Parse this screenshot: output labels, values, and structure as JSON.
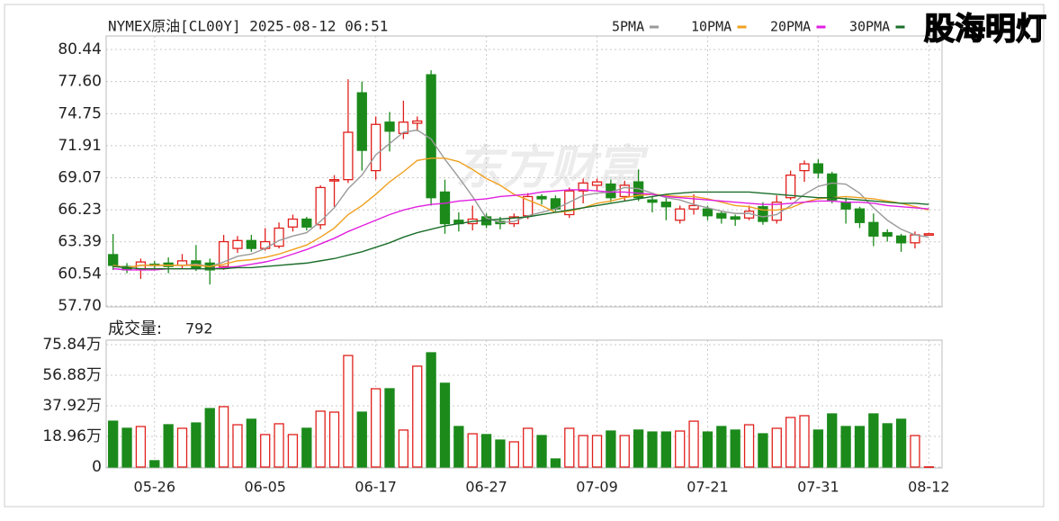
{
  "chart_data": [
    {
      "type": "candlestick",
      "title": "NYMEX原油[CL00Y] 2025-08-12 06:51",
      "categories": [
        null,
        null,
        null,
        "05-26",
        null,
        null,
        null,
        null,
        null,
        null,
        null,
        "06-05",
        null,
        null,
        null,
        null,
        null,
        null,
        null,
        "06-17",
        null,
        null,
        null,
        null,
        null,
        null,
        null,
        "06-27",
        null,
        null,
        null,
        null,
        null,
        null,
        null,
        "07-09",
        null,
        null,
        null,
        null,
        null,
        null,
        null,
        "07-21",
        null,
        null,
        null,
        null,
        null,
        null,
        null,
        "07-31",
        null,
        null,
        null,
        null,
        null,
        null,
        null,
        "08-12"
      ],
      "open": [
        62.25,
        61.2,
        60.9,
        61.4,
        61.5,
        61.3,
        61.7,
        61.5,
        61.2,
        62.8,
        63.5,
        62.8,
        63.0,
        64.7,
        65.4,
        64.9,
        68.8,
        68.9,
        76.6,
        69.7,
        74.0,
        73.0,
        73.9,
        78.2,
        67.8,
        65.3,
        65.0,
        65.6,
        65.2,
        65.0,
        65.7,
        67.4,
        67.2,
        65.8,
        67.9,
        68.4,
        68.5,
        67.4,
        68.7,
        67.1,
        66.9,
        65.3,
        66.3,
        66.3,
        65.9,
        65.6,
        65.5,
        66.5,
        65.3,
        67.3,
        69.7,
        70.3,
        69.4,
        66.9,
        66.3,
        65.1,
        64.2,
        63.9,
        63.3,
        64.05
      ],
      "high": [
        64.08,
        61.5,
        61.9,
        61.7,
        62.0,
        62.3,
        63.1,
        61.9,
        64.0,
        63.9,
        64.0,
        64.6,
        65.1,
        65.8,
        65.6,
        68.4,
        69.3,
        77.8,
        77.6,
        74.5,
        74.9,
        75.9,
        74.5,
        78.6,
        68.9,
        66.0,
        66.6,
        65.9,
        65.6,
        65.9,
        67.7,
        67.6,
        67.5,
        68.2,
        69.0,
        69.0,
        68.9,
        68.8,
        69.8,
        67.4,
        67.3,
        66.6,
        67.6,
        66.6,
        66.1,
        65.8,
        66.6,
        66.9,
        67.5,
        69.7,
        70.6,
        70.7,
        69.6,
        67.3,
        66.5,
        65.9,
        64.5,
        64.1,
        64.3,
        64.2
      ],
      "low": [
        60.89,
        60.6,
        60.1,
        61.0,
        60.6,
        61.0,
        60.8,
        59.6,
        60.9,
        62.4,
        62.5,
        62.6,
        62.8,
        64.3,
        64.4,
        64.5,
        66.5,
        68.6,
        69.7,
        68.9,
        71.4,
        72.5,
        73.2,
        66.6,
        64.1,
        64.3,
        64.4,
        64.6,
        64.5,
        64.7,
        65.4,
        66.7,
        66.1,
        65.5,
        66.8,
        67.9,
        66.9,
        67.0,
        67.0,
        66.0,
        65.3,
        65.0,
        65.8,
        65.3,
        65.0,
        64.8,
        65.3,
        64.9,
        65.0,
        67.1,
        68.7,
        69.0,
        66.8,
        65.0,
        64.6,
        63.0,
        63.4,
        62.5,
        62.8,
        64.0
      ],
      "close": [
        61.3,
        60.9,
        61.6,
        61.3,
        61.2,
        61.7,
        61.0,
        60.9,
        63.4,
        63.5,
        62.8,
        63.4,
        64.6,
        65.4,
        64.7,
        68.2,
        68.9,
        73.1,
        71.5,
        73.8,
        73.2,
        74.0,
        74.1,
        67.3,
        65.0,
        65.0,
        65.4,
        64.9,
        65.0,
        65.6,
        67.4,
        67.2,
        66.3,
        67.9,
        68.6,
        68.7,
        67.3,
        68.4,
        67.3,
        66.9,
        66.5,
        66.3,
        66.6,
        65.7,
        65.5,
        65.4,
        66.1,
        65.2,
        66.9,
        69.3,
        70.3,
        69.5,
        67.1,
        66.3,
        65.1,
        63.9,
        63.9,
        63.3,
        64.0,
        64.1
      ],
      "up_color": "#e0201c",
      "down_color": "#1b8a1b",
      "series": [
        {
          "name": "5PMA",
          "color": "#9a9a9a",
          "values": [
            61.3,
            61.1,
            61.3,
            61.3,
            61.3,
            61.3,
            61.4,
            61.2,
            61.6,
            62.1,
            62.3,
            62.8,
            63.5,
            63.9,
            64.2,
            65.2,
            66.4,
            68.1,
            69.3,
            71.1,
            72.1,
            73.1,
            73.3,
            72.5,
            70.7,
            69.1,
            67.4,
            65.5,
            65.1,
            65.2,
            65.7,
            66.0,
            66.3,
            66.9,
            67.5,
            67.7,
            67.8,
            68.2,
            68.1,
            67.7,
            67.3,
            67.1,
            66.7,
            66.4,
            66.1,
            65.9,
            65.9,
            65.6,
            65.8,
            66.6,
            67.6,
            68.3,
            68.6,
            68.5,
            67.7,
            66.4,
            65.3,
            64.5,
            64.0,
            63.8
          ]
        },
        {
          "name": "10PMA",
          "color": "#f0a020",
          "values": [
            61.3,
            61.1,
            61.3,
            61.3,
            61.3,
            61.3,
            61.3,
            61.2,
            61.4,
            61.7,
            61.8,
            62.0,
            62.3,
            62.7,
            63.1,
            63.8,
            64.6,
            65.8,
            66.6,
            67.6,
            68.7,
            69.6,
            70.6,
            70.8,
            70.8,
            70.5,
            69.8,
            69.0,
            68.4,
            67.6,
            67.1,
            66.6,
            66.0,
            66.1,
            66.4,
            66.8,
            67.0,
            67.3,
            67.5,
            67.6,
            67.5,
            67.4,
            67.4,
            67.2,
            66.9,
            66.6,
            66.5,
            66.2,
            66.2,
            66.4,
            66.9,
            67.2,
            67.3,
            67.4,
            67.3,
            67.2,
            67.0,
            66.8,
            66.5,
            66.2
          ]
        },
        {
          "name": "20PMA",
          "color": "#e020e0",
          "values": [
            61.0,
            60.9,
            60.9,
            60.9,
            61.0,
            61.0,
            61.0,
            61.0,
            61.1,
            61.2,
            61.4,
            61.6,
            61.9,
            62.3,
            62.7,
            63.2,
            63.7,
            64.3,
            64.8,
            65.3,
            65.8,
            66.2,
            66.5,
            66.7,
            66.8,
            67.0,
            67.1,
            67.2,
            67.4,
            67.5,
            67.6,
            67.8,
            67.9,
            68.0,
            68.0,
            67.9,
            67.8,
            67.8,
            67.7,
            67.6,
            67.4,
            67.3,
            67.2,
            67.1,
            67.0,
            66.9,
            66.8,
            66.7,
            66.7,
            66.8,
            66.9,
            67.0,
            67.0,
            66.9,
            66.9,
            66.8,
            66.6,
            66.5,
            66.4,
            66.3
          ]
        },
        {
          "name": "30PMA",
          "color": "#1a6e2a",
          "values": [
            61.2,
            61.1,
            61.0,
            61.0,
            61.0,
            61.0,
            61.0,
            61.0,
            61.0,
            61.1,
            61.1,
            61.2,
            61.3,
            61.4,
            61.5,
            61.7,
            61.9,
            62.2,
            62.5,
            62.9,
            63.3,
            63.8,
            64.2,
            64.5,
            64.8,
            65.0,
            65.2,
            65.3,
            65.4,
            65.5,
            65.6,
            65.8,
            66.0,
            66.2,
            66.4,
            66.6,
            66.8,
            67.0,
            67.2,
            67.4,
            67.6,
            67.7,
            67.8,
            67.8,
            67.8,
            67.8,
            67.8,
            67.7,
            67.6,
            67.5,
            67.4,
            67.3,
            67.3,
            67.2,
            67.1,
            67.0,
            66.9,
            66.8,
            66.8,
            66.7
          ]
        }
      ],
      "ylim": [
        57.7,
        81.64
      ],
      "yticks": [
        {
          "value": 57.7,
          "label": "57.70"
        },
        {
          "value": 60.54,
          "label": "60.54"
        },
        {
          "value": 63.39,
          "label": "63.39"
        },
        {
          "value": 66.23,
          "label": "66.23"
        },
        {
          "value": 69.07,
          "label": "69.07"
        },
        {
          "value": 71.91,
          "label": "71.91"
        },
        {
          "value": 74.75,
          "label": "74.75"
        },
        {
          "value": 77.6,
          "label": "77.60"
        },
        {
          "value": 80.44,
          "label": "80.44"
        }
      ],
      "grid": true
    },
    {
      "type": "bar",
      "title": "成交量:",
      "values": [
        284000,
        240000,
        251000,
        39000,
        262000,
        240000,
        273000,
        362000,
        374000,
        262000,
        296000,
        201000,
        268000,
        201000,
        240000,
        346000,
        340000,
        691000,
        340000,
        485000,
        485000,
        229000,
        625000,
        708000,
        519000,
        251000,
        206000,
        201000,
        167000,
        156000,
        240000,
        195000,
        50000,
        240000,
        195000,
        195000,
        223000,
        195000,
        229000,
        217000,
        217000,
        223000,
        284000,
        217000,
        251000,
        229000,
        262000,
        206000,
        240000,
        307000,
        318000,
        229000,
        329000,
        251000,
        251000,
        329000,
        268000,
        296000,
        195000,
        792
      ],
      "ylim": [
        0,
        786300
      ],
      "yticks": [
        {
          "value": 0,
          "label": "0"
        },
        {
          "value": 189600,
          "label": "18.96万"
        },
        {
          "value": 379200,
          "label": "37.92万"
        },
        {
          "value": 568800,
          "label": "56.88万"
        },
        {
          "value": 758400,
          "label": "75.84万"
        }
      ],
      "grid": true
    }
  ],
  "watermarks": [
    "东方财富",
    "股海明灯"
  ]
}
